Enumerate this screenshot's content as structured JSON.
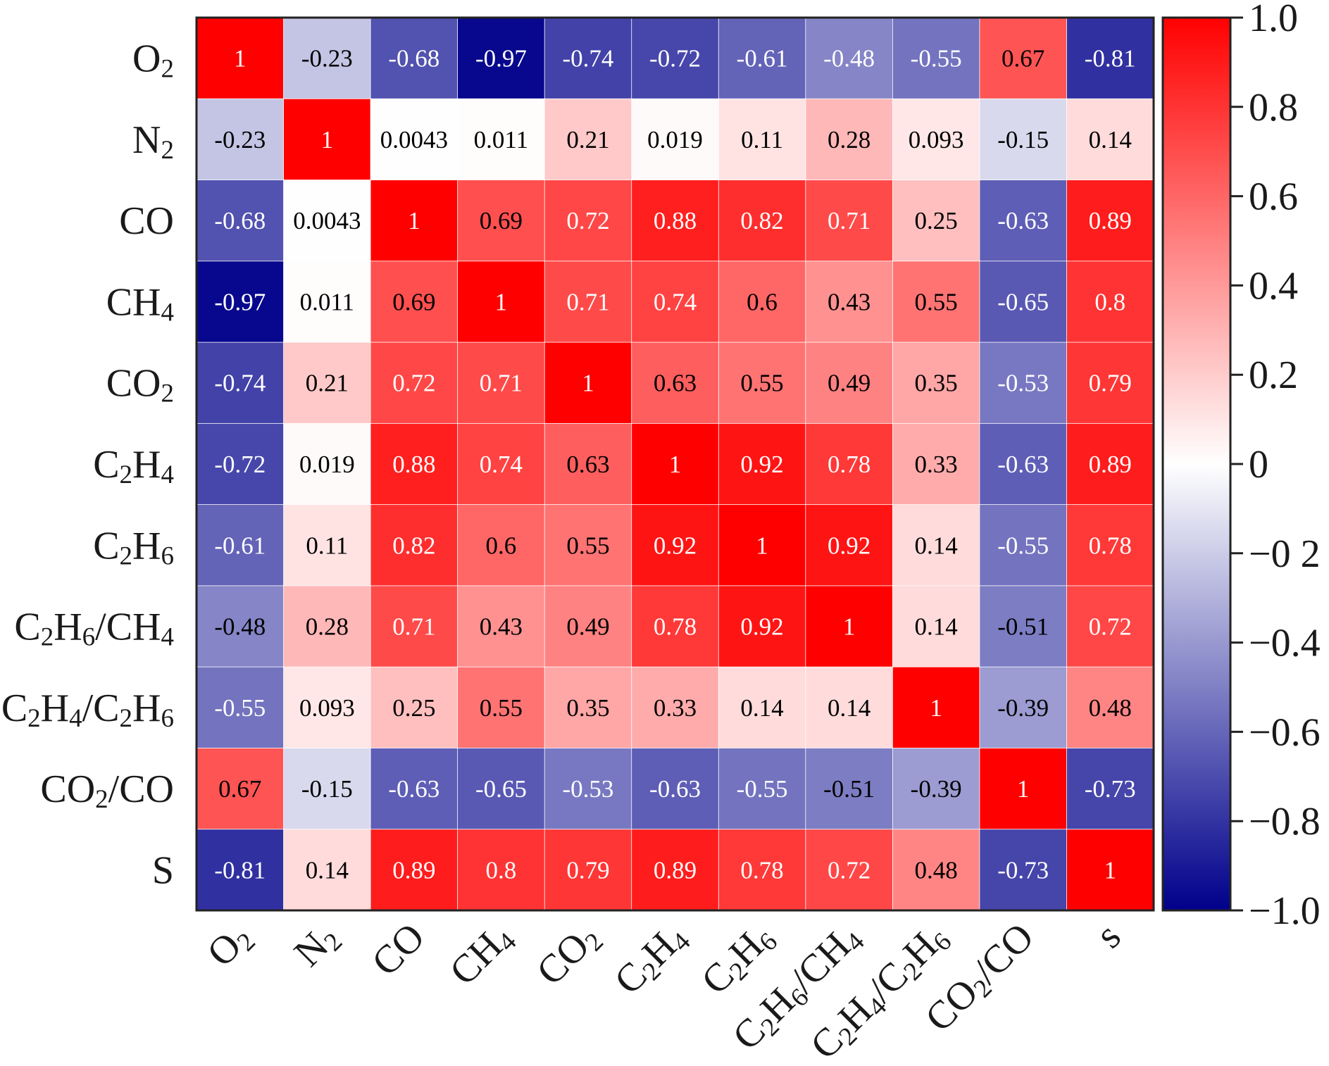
{
  "chart_data": {
    "type": "heatmap",
    "title": "",
    "rows": [
      "O2",
      "N2",
      "CO",
      "CH4",
      "CO2",
      "C2H4",
      "C2H6",
      "C2H6/CH4",
      "C2H4/C2H6",
      "CO2/CO",
      "S"
    ],
    "columns": [
      "O2",
      "N2",
      "CO",
      "CH4",
      "CO2",
      "C2H4",
      "C2H6",
      "C2H6/CH4",
      "C2H4/C2H6",
      "CO2/CO",
      "s"
    ],
    "row_labels": [
      [
        [
          "O",
          0
        ],
        [
          "2",
          1
        ]
      ],
      [
        [
          "N",
          0
        ],
        [
          "2",
          1
        ]
      ],
      [
        [
          "CO",
          0
        ]
      ],
      [
        [
          "CH",
          0
        ],
        [
          "4",
          1
        ]
      ],
      [
        [
          "CO",
          0
        ],
        [
          "2",
          1
        ]
      ],
      [
        [
          "C",
          0
        ],
        [
          "2",
          1
        ],
        [
          "H",
          0
        ],
        [
          "4",
          1
        ]
      ],
      [
        [
          "C",
          0
        ],
        [
          "2",
          1
        ],
        [
          "H",
          0
        ],
        [
          "6",
          1
        ]
      ],
      [
        [
          "C",
          0
        ],
        [
          "2",
          1
        ],
        [
          "H",
          0
        ],
        [
          "6",
          1
        ],
        [
          "/CH",
          0
        ],
        [
          "4",
          1
        ]
      ],
      [
        [
          "C",
          0
        ],
        [
          "2",
          1
        ],
        [
          "H",
          0
        ],
        [
          "4",
          1
        ],
        [
          "/C",
          0
        ],
        [
          "2",
          1
        ],
        [
          "H",
          0
        ],
        [
          "6",
          1
        ]
      ],
      [
        [
          "CO",
          0
        ],
        [
          "2",
          1
        ],
        [
          "/CO",
          0
        ]
      ],
      [
        [
          "S",
          0
        ]
      ]
    ],
    "column_labels": [
      [
        [
          "O",
          0
        ],
        [
          "2",
          1
        ]
      ],
      [
        [
          "N",
          0
        ],
        [
          "2",
          1
        ]
      ],
      [
        [
          "CO",
          0
        ]
      ],
      [
        [
          "CH",
          0
        ],
        [
          "4",
          1
        ]
      ],
      [
        [
          "CO",
          0
        ],
        [
          "2",
          1
        ]
      ],
      [
        [
          "C",
          0
        ],
        [
          "2",
          1
        ],
        [
          "H",
          0
        ],
        [
          "4",
          1
        ]
      ],
      [
        [
          "C",
          0
        ],
        [
          "2",
          1
        ],
        [
          "H",
          0
        ],
        [
          "6",
          1
        ]
      ],
      [
        [
          "C",
          0
        ],
        [
          "2",
          1
        ],
        [
          "H",
          0
        ],
        [
          "6",
          1
        ],
        [
          "/CH",
          0
        ],
        [
          "4",
          1
        ]
      ],
      [
        [
          "C",
          0
        ],
        [
          "2",
          1
        ],
        [
          "H",
          0
        ],
        [
          "4",
          1
        ],
        [
          "/C",
          0
        ],
        [
          "2",
          1
        ],
        [
          "H",
          0
        ],
        [
          "6",
          1
        ]
      ],
      [
        [
          "CO",
          0
        ],
        [
          "2",
          1
        ],
        [
          "/CO",
          0
        ]
      ],
      [
        [
          "s",
          0
        ]
      ]
    ],
    "values": [
      [
        1,
        -0.23,
        -0.68,
        -0.97,
        -0.74,
        -0.72,
        -0.61,
        -0.48,
        -0.55,
        0.67,
        -0.81
      ],
      [
        -0.23,
        1,
        0.0043,
        0.011,
        0.21,
        0.019,
        0.11,
        0.28,
        0.093,
        -0.15,
        0.14
      ],
      [
        -0.68,
        0.0043,
        1,
        0.69,
        0.72,
        0.88,
        0.82,
        0.71,
        0.25,
        -0.63,
        0.89
      ],
      [
        -0.97,
        0.011,
        0.69,
        1,
        0.71,
        0.74,
        0.6,
        0.43,
        0.55,
        -0.65,
        0.8
      ],
      [
        -0.74,
        0.21,
        0.72,
        0.71,
        1,
        0.63,
        0.55,
        0.49,
        0.35,
        -0.53,
        0.79
      ],
      [
        -0.72,
        0.019,
        0.88,
        0.74,
        0.63,
        1,
        0.92,
        0.78,
        0.33,
        -0.63,
        0.89
      ],
      [
        -0.61,
        0.11,
        0.82,
        0.6,
        0.55,
        0.92,
        1,
        0.92,
        0.14,
        -0.55,
        0.78
      ],
      [
        -0.48,
        0.28,
        0.71,
        0.43,
        0.49,
        0.78,
        0.92,
        1,
        0.14,
        -0.51,
        0.72
      ],
      [
        -0.55,
        0.093,
        0.25,
        0.55,
        0.35,
        0.33,
        0.14,
        0.14,
        1,
        -0.39,
        0.48
      ],
      [
        0.67,
        -0.15,
        -0.63,
        -0.65,
        -0.53,
        -0.63,
        -0.55,
        -0.51,
        -0.39,
        1,
        -0.73
      ],
      [
        -0.81,
        0.14,
        0.89,
        0.8,
        0.79,
        0.89,
        0.78,
        0.72,
        0.48,
        -0.73,
        1
      ]
    ],
    "value_text_colors": [
      [
        "white",
        "black",
        "white",
        "white",
        "white",
        "white",
        "white",
        "white",
        "white",
        "black",
        "white"
      ],
      [
        "black",
        "white",
        "black",
        "black",
        "black",
        "black",
        "black",
        "black",
        "black",
        "black",
        "black"
      ],
      [
        "white",
        "black",
        "white",
        "black",
        "white",
        "white",
        "white",
        "white",
        "black",
        "white",
        "white"
      ],
      [
        "white",
        "black",
        "black",
        "white",
        "white",
        "white",
        "black",
        "black",
        "black",
        "white",
        "white"
      ],
      [
        "white",
        "black",
        "white",
        "white",
        "white",
        "black",
        "black",
        "black",
        "black",
        "white",
        "white"
      ],
      [
        "white",
        "black",
        "white",
        "white",
        "black",
        "white",
        "white",
        "white",
        "black",
        "white",
        "white"
      ],
      [
        "white",
        "black",
        "white",
        "black",
        "black",
        "white",
        "white",
        "white",
        "black",
        "white",
        "white"
      ],
      [
        "black",
        "black",
        "white",
        "black",
        "black",
        "white",
        "white",
        "white",
        "black",
        "black",
        "white"
      ],
      [
        "white",
        "black",
        "black",
        "black",
        "black",
        "black",
        "black",
        "black",
        "white",
        "black",
        "black"
      ],
      [
        "black",
        "black",
        "white",
        "white",
        "white",
        "white",
        "white",
        "black",
        "black",
        "white",
        "white"
      ],
      [
        "white",
        "black",
        "white",
        "white",
        "white",
        "white",
        "white",
        "white",
        "black",
        "white",
        "white"
      ]
    ],
    "colorbar": {
      "min": -1.0,
      "max": 1.0,
      "tick_values": [
        1.0,
        0.8,
        0.6,
        0.4,
        0.2,
        0,
        -0.2,
        -0.4,
        -0.6,
        -0.8,
        -1.0
      ],
      "tick_labels": [
        "1.0",
        "0.8",
        "0.6",
        "0.4",
        "0.2",
        "0",
        "−0 2",
        "−0.4",
        "−0.6",
        "−0.8",
        "−1.0"
      ],
      "colors": {
        "negative": "#00008b",
        "zero": "#ffffff",
        "positive": "#ff0000"
      }
    }
  }
}
